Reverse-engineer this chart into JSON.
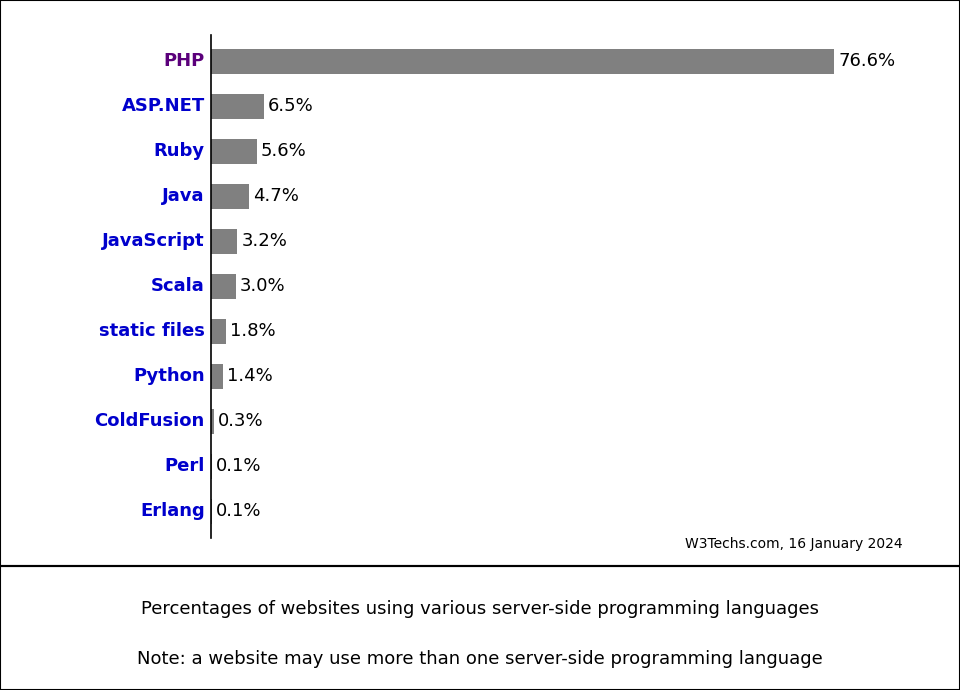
{
  "categories": [
    "PHP",
    "ASP.NET",
    "Ruby",
    "Java",
    "JavaScript",
    "Scala",
    "static files",
    "Python",
    "ColdFusion",
    "Perl",
    "Erlang"
  ],
  "values": [
    76.6,
    6.5,
    5.6,
    4.7,
    3.2,
    3.0,
    1.8,
    1.4,
    0.3,
    0.1,
    0.1
  ],
  "labels": [
    "76.6%",
    "6.5%",
    "5.6%",
    "4.7%",
    "3.2%",
    "3.0%",
    "1.8%",
    "1.4%",
    "0.3%",
    "0.1%",
    "0.1%"
  ],
  "bar_color": "#808080",
  "label_color_php": "#5b007b",
  "label_color_others": "#0000cc",
  "background_color": "#ffffff",
  "xlim": [
    0,
    85
  ],
  "source_text": "W3Techs.com, 16 January 2024",
  "caption_line1": "Percentages of websites using various server-side programming languages",
  "caption_line2": "Note: a website may use more than one server-side programming language",
  "bar_height": 0.55,
  "label_fontsize": 13,
  "source_fontsize": 10,
  "caption_fontsize": 13,
  "cat_label_fontsize": 13
}
